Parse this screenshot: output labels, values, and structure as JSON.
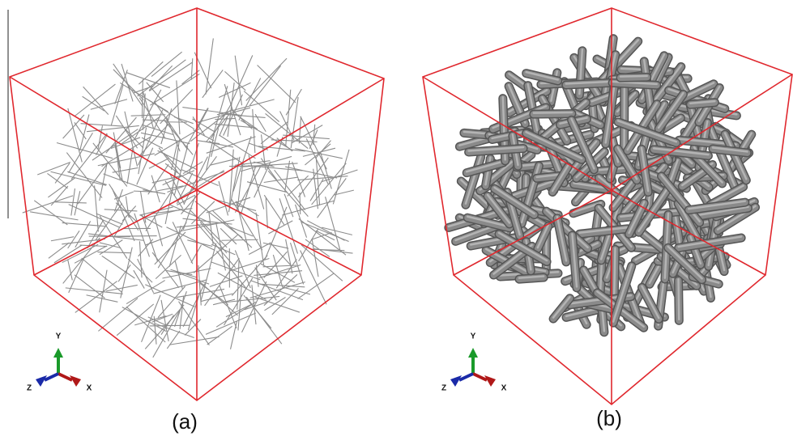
{
  "panels": [
    {
      "label": "(a)",
      "triad": {
        "y": "Y",
        "z": "Z",
        "x": "X"
      }
    },
    {
      "label": "(b)",
      "triad": {
        "y": "Y",
        "z": "Z",
        "x": "X"
      }
    }
  ]
}
